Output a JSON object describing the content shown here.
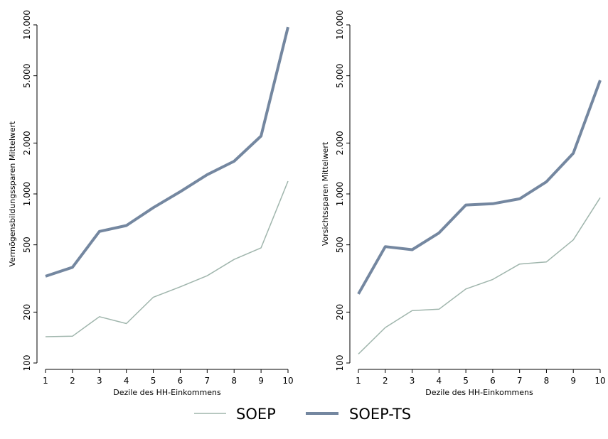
{
  "colors": {
    "soep": "#9fb5ac",
    "soep_ts": "#7487a0",
    "axis": "#000000"
  },
  "legend": [
    {
      "name": "SOEP",
      "series_key": "soep"
    },
    {
      "name": "SOEP-TS",
      "series_key": "soep_ts"
    }
  ],
  "chart_data": [
    {
      "type": "line",
      "scale_y": "log",
      "xlabel": "Dezile des HH-Einkommens",
      "ylabel": "Vermögensbildungssparen Mittelwert",
      "x": [
        1,
        2,
        3,
        4,
        5,
        6,
        7,
        8,
        9,
        10
      ],
      "xticks": [
        "1",
        "2",
        "3",
        "4",
        "5",
        "6",
        "7",
        "8",
        "9",
        "10"
      ],
      "yticks": [
        {
          "value": 100,
          "label": "100"
        },
        {
          "value": 200,
          "label": "200"
        },
        {
          "value": 500,
          "label": "500"
        },
        {
          "value": 1000,
          "label": "1.000"
        },
        {
          "value": 2000,
          "label": "2.000"
        },
        {
          "value": 5000,
          "label": "5.000"
        },
        {
          "value": 10000,
          "label": "10.000"
        }
      ],
      "ylim": [
        100,
        10000
      ],
      "series": [
        {
          "name": "SOEP",
          "key": "soep",
          "values": [
            143,
            144,
            188,
            171,
            245,
            282,
            328,
            410,
            480,
            1190
          ]
        },
        {
          "name": "SOEP-TS",
          "key": "soep_ts",
          "values": [
            326,
            368,
            600,
            650,
            830,
            1030,
            1300,
            1560,
            2200,
            9700
          ]
        }
      ]
    },
    {
      "type": "line",
      "scale_y": "log",
      "xlabel": "Dezile des HH-Einkommens",
      "ylabel": "Vorsichtssparen Mittelwert",
      "x": [
        1,
        2,
        3,
        4,
        5,
        6,
        7,
        8,
        9,
        10
      ],
      "xticks": [
        "1",
        "2",
        "3",
        "4",
        "5",
        "6",
        "7",
        "8",
        "9",
        "10"
      ],
      "yticks": [
        {
          "value": 100,
          "label": "100"
        },
        {
          "value": 200,
          "label": "200"
        },
        {
          "value": 500,
          "label": "500"
        },
        {
          "value": 1000,
          "label": "1.000"
        },
        {
          "value": 2000,
          "label": "2.000"
        },
        {
          "value": 5000,
          "label": "5.000"
        },
        {
          "value": 10000,
          "label": "10.000"
        }
      ],
      "ylim": [
        100,
        10000
      ],
      "series": [
        {
          "name": "SOEP",
          "key": "soep",
          "values": [
            113,
            162,
            204,
            208,
            274,
            312,
            385,
            396,
            535,
            950
          ]
        },
        {
          "name": "SOEP-TS",
          "key": "soep_ts",
          "values": [
            256,
            488,
            468,
            588,
            860,
            875,
            935,
            1180,
            1740,
            4700
          ]
        }
      ]
    }
  ]
}
